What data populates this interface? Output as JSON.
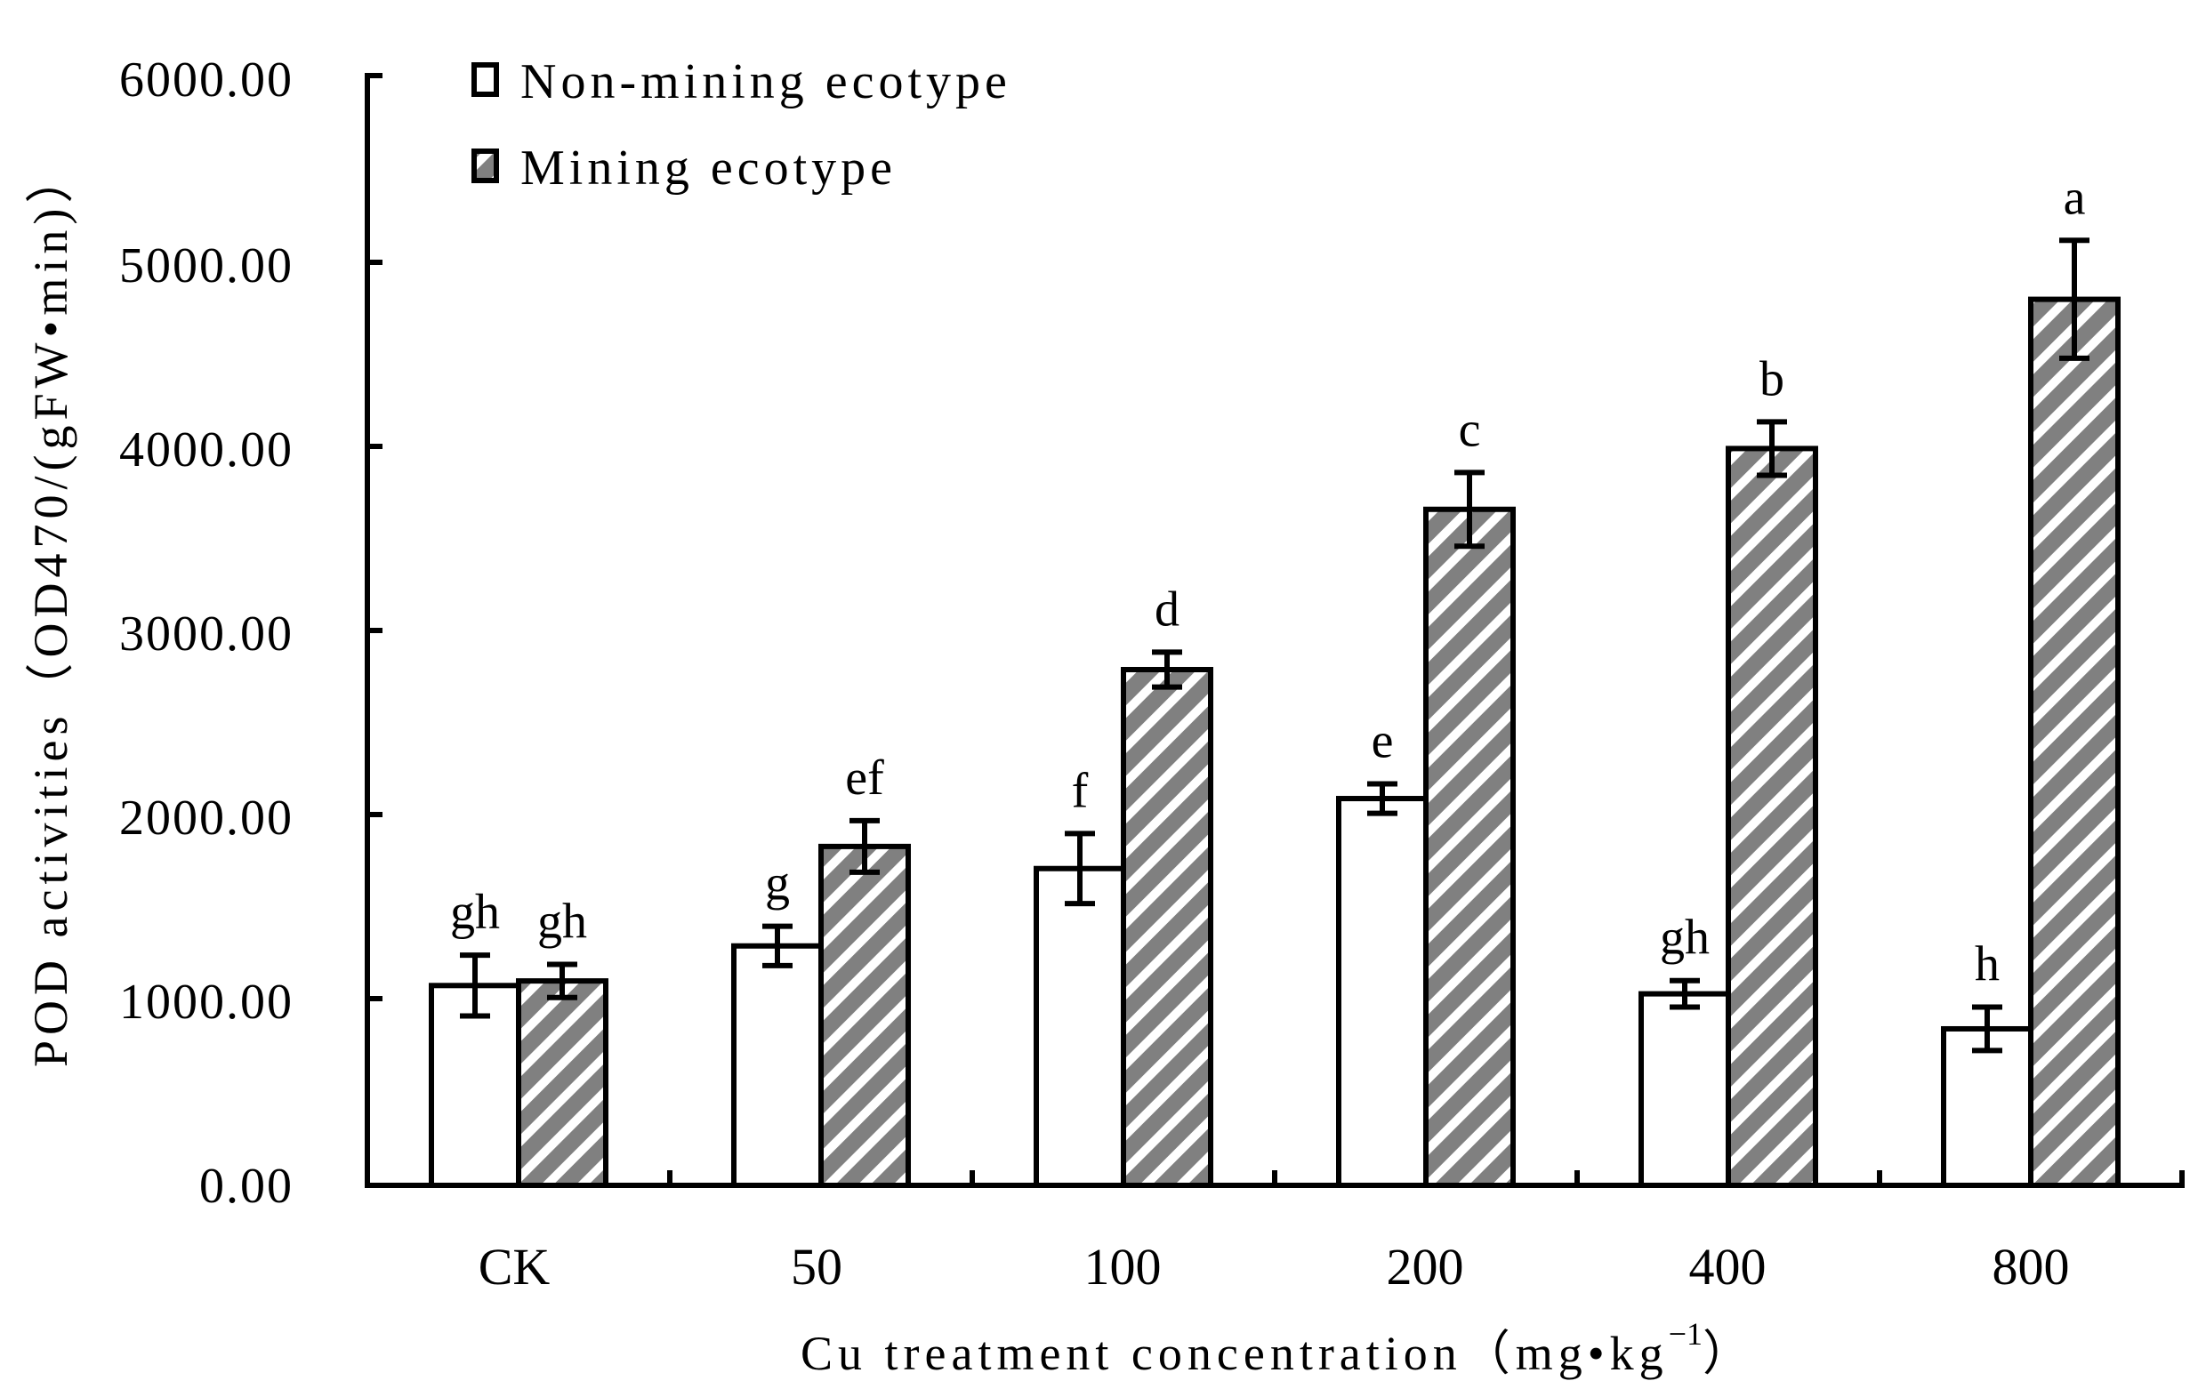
{
  "chart_data": {
    "type": "bar",
    "title": "",
    "xlabel": "Cu treatment concentration（mg•kg⁻¹）",
    "ylabel": "POD activities（OD470/(gFW•min)）",
    "categories": [
      "CK",
      "50",
      "100",
      "200",
      "400",
      "800"
    ],
    "ylim": [
      0,
      6000
    ],
    "yticks": [
      "0.00",
      "1000.00",
      "2000.00",
      "3000.00",
      "4000.00",
      "5000.00",
      "6000.00"
    ],
    "grid": false,
    "legend_position": "top-left",
    "series": [
      {
        "name": "Non-mining ecotype",
        "fill": "white",
        "values": [
          1075,
          1290,
          1710,
          2090,
          1030,
          840
        ],
        "errors": [
          165,
          107,
          190,
          80,
          72,
          118
        ],
        "significance": [
          "gh",
          "g",
          "f",
          "e",
          "gh",
          "h"
        ]
      },
      {
        "name": "Mining ecotype",
        "fill": "gray-diagonal-hatch",
        "values": [
          1100,
          1830,
          2790,
          3660,
          3990,
          4800
        ],
        "errors": [
          90,
          140,
          95,
          200,
          145,
          320
        ],
        "significance": [
          "gh",
          "ef",
          "d",
          "c",
          "b",
          "a"
        ]
      }
    ]
  },
  "legend": {
    "items": [
      {
        "label": "Non-mining ecotype"
      },
      {
        "label": "Mining ecotype"
      }
    ]
  },
  "axes": {
    "x_title_main": "Cu treatment concentration（mg•kg",
    "x_title_sup": "−1",
    "x_title_end": "）",
    "y_title": "POD activities（OD470/(gFW•min)）"
  },
  "colors": {
    "axis": "#000000",
    "hatch_gray": "#808080",
    "hatch_white": "#ffffff",
    "plain_bar": "#ffffff"
  }
}
